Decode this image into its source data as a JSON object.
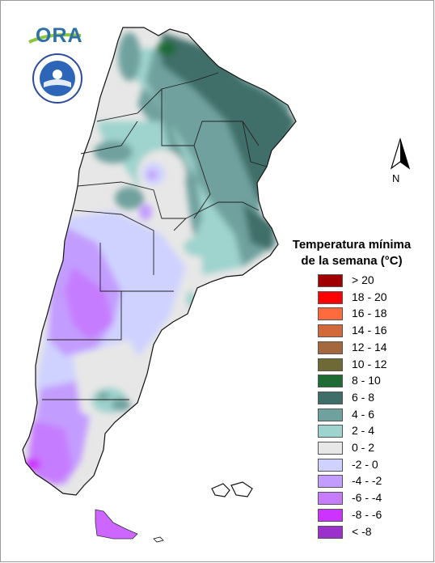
{
  "title": {
    "line1": "Temperatura mínima",
    "line2": "de la semana (°C)"
  },
  "logo": {
    "text": "ORA"
  },
  "north_arrow": {
    "label": "N"
  },
  "legend": [
    {
      "label": "> 20",
      "color": "#a10000"
    },
    {
      "label": "18 - 20",
      "color": "#ff0000"
    },
    {
      "label": "16 - 18",
      "color": "#ff6b3d"
    },
    {
      "label": "14 - 16",
      "color": "#d2693a"
    },
    {
      "label": "12 - 14",
      "color": "#a5683e"
    },
    {
      "label": "10 - 12",
      "color": "#6d6a36"
    },
    {
      "label": "8 - 10",
      "color": "#1f6b34"
    },
    {
      "label": "6 - 8",
      "color": "#3f6e69"
    },
    {
      "label": "4 - 6",
      "color": "#6fa19e"
    },
    {
      "label": "2 - 4",
      "color": "#9fd3cd"
    },
    {
      "label": "0 - 2",
      "color": "#e7e7e7"
    },
    {
      "label": "-2 - 0",
      "color": "#cfd2ff"
    },
    {
      "label": "-4 - -2",
      "color": "#c39cff"
    },
    {
      "label": "-6 - -4",
      "color": "#c67cff"
    },
    {
      "label": "-8 - -6",
      "color": "#cc33ff"
    },
    {
      "label": "< -8",
      "color": "#9b30cc"
    }
  ]
}
